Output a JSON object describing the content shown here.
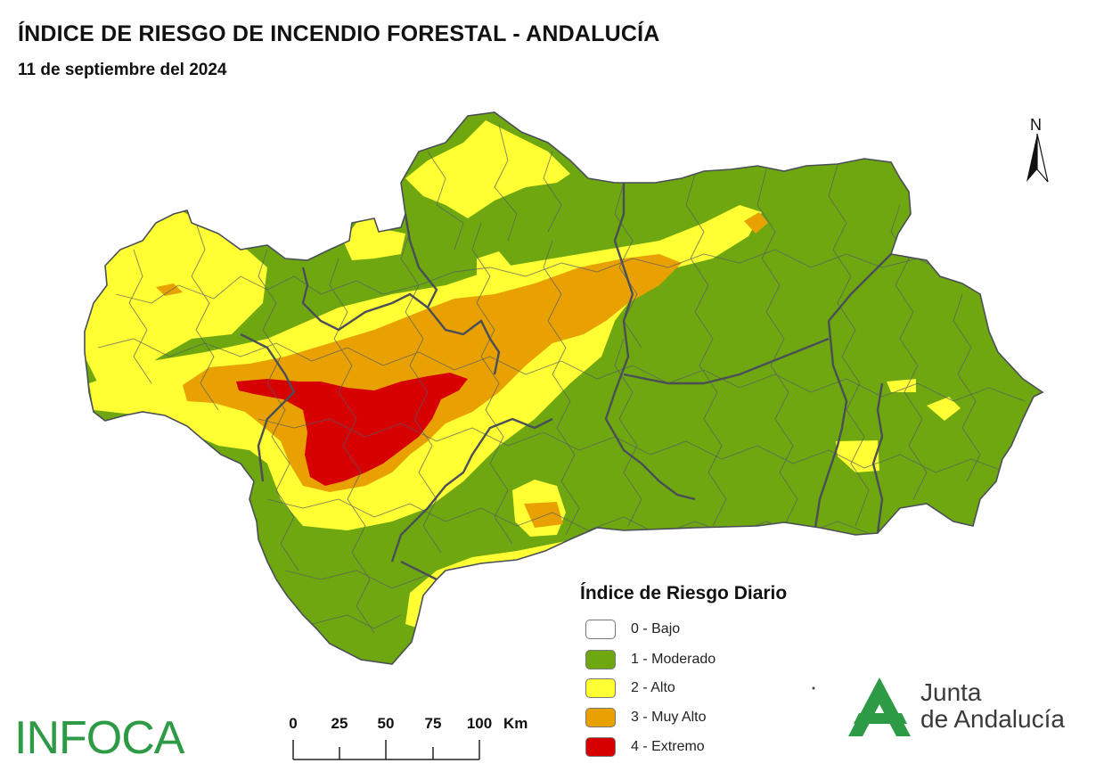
{
  "header": {
    "title": "ÍNDICE DE RIESGO DE INCENDIO FORESTAL - ANDALUCÍA",
    "date": "11 de septiembre del 2024"
  },
  "north_arrow": {
    "label": "N"
  },
  "legend": {
    "title": "Índice de Riesgo Diario",
    "items": [
      {
        "label": "0 - Bajo",
        "color": "#ffffff"
      },
      {
        "label": "1 - Moderado",
        "color": "#6ea70f"
      },
      {
        "label": "2 - Alto",
        "color": "#ffff33"
      },
      {
        "label": "3 - Muy Alto",
        "color": "#e8a100"
      },
      {
        "label": "4 - Extremo",
        "color": "#d60000"
      }
    ]
  },
  "scale_bar": {
    "ticks": [
      "0",
      "25",
      "50",
      "75",
      "100"
    ],
    "unit": "Km"
  },
  "logos": {
    "infoca": "INFOCA",
    "junta_line1": "Junta",
    "junta_line2": "de Andalucía"
  },
  "colors": {
    "moderado": "#6ea70f",
    "alto": "#ffff33",
    "muy_alto": "#e8a100",
    "extremo": "#d60000",
    "borders": "#555b66",
    "brand_green": "#2d9a46"
  }
}
